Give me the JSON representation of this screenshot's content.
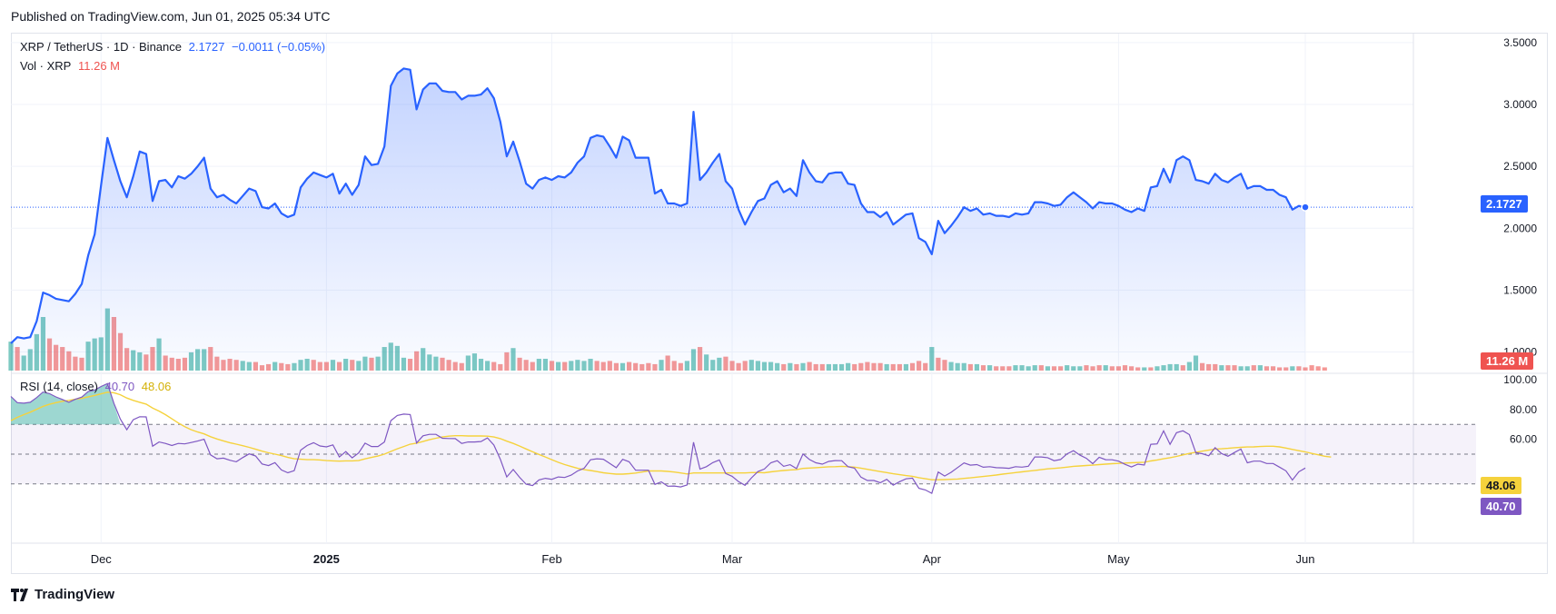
{
  "header": {
    "published": "Published on TradingView.com, Jun 01, 2025 05:34 UTC"
  },
  "legend": {
    "symbol": "XRP / TetherUS · 1D · Binance",
    "last": "2.1727",
    "change": "−0.0011 (−0.05%)",
    "vol_label": "Vol · XRP",
    "vol_value": "11.26 M",
    "rsi_label": "RSI (14, close)",
    "rsi_value": "40.70",
    "rsi_ma_value": "48.06"
  },
  "badges": {
    "price": "2.1727",
    "volume": "11.26 M",
    "rsi_ma": "48.06",
    "rsi": "40.70"
  },
  "footer": {
    "brand": "TradingView"
  },
  "colors": {
    "price_line": "#2962ff",
    "vol_up": "#26a69a",
    "vol_down": "#ef5350",
    "rsi": "#7e57c2",
    "rsi_ma": "#f5d23c",
    "rsi_band": "#7e57c2"
  },
  "chart_data": {
    "type": "line",
    "x_ticks": [
      "Dec",
      "2025",
      "Feb",
      "Mar",
      "Apr",
      "May",
      "Jun"
    ],
    "price_ticks": [
      "3.5000",
      "3.0000",
      "2.5000",
      "2.0000",
      "1.5000",
      "1.0000"
    ],
    "price_ylim": [
      0.85,
      3.55
    ],
    "rsi_ticks": [
      "100.00",
      "80.00",
      "60.00"
    ],
    "rsi_ylim": [
      0,
      100
    ],
    "rsi_bands": [
      70,
      50,
      30
    ],
    "price": [
      1.07,
      1.12,
      1.11,
      1.12,
      1.25,
      1.48,
      1.46,
      1.43,
      1.42,
      1.41,
      1.47,
      1.55,
      1.78,
      1.95,
      2.35,
      2.73,
      2.55,
      2.38,
      2.25,
      2.42,
      2.62,
      2.6,
      2.22,
      2.38,
      2.39,
      2.33,
      2.42,
      2.4,
      2.44,
      2.5,
      2.57,
      2.32,
      2.25,
      2.27,
      2.23,
      2.2,
      2.26,
      2.32,
      2.3,
      2.17,
      2.16,
      2.2,
      2.12,
      2.09,
      2.11,
      2.33,
      2.4,
      2.45,
      2.43,
      2.41,
      2.44,
      2.28,
      2.36,
      2.27,
      2.35,
      2.58,
      2.51,
      2.52,
      2.66,
      3.15,
      3.25,
      3.29,
      3.28,
      2.96,
      3.12,
      3.17,
      3.17,
      3.11,
      3.1,
      3.1,
      3.04,
      3.07,
      3.07,
      3.08,
      3.13,
      3.05,
      2.86,
      2.58,
      2.7,
      2.54,
      2.36,
      2.32,
      2.39,
      2.41,
      2.39,
      2.42,
      2.41,
      2.45,
      2.53,
      2.58,
      2.73,
      2.75,
      2.74,
      2.66,
      2.57,
      2.74,
      2.71,
      2.57,
      2.57,
      2.57,
      2.28,
      2.31,
      2.2,
      2.2,
      2.18,
      2.2,
      2.94,
      2.39,
      2.45,
      2.53,
      2.6,
      2.38,
      2.32,
      2.15,
      2.03,
      2.13,
      2.22,
      2.24,
      2.35,
      2.38,
      2.29,
      2.32,
      2.26,
      2.55,
      2.45,
      2.38,
      2.37,
      2.44,
      2.45,
      2.45,
      2.36,
      2.35,
      2.2,
      2.13,
      2.13,
      2.09,
      2.13,
      2.03,
      2.07,
      2.11,
      2.12,
      1.92,
      1.89,
      1.79,
      2.06,
      1.96,
      2.02,
      2.09,
      2.17,
      2.14,
      2.16,
      2.11,
      2.12,
      2.1,
      2.1,
      2.09,
      2.12,
      2.11,
      2.12,
      2.21,
      2.21,
      2.2,
      2.18,
      2.19,
      2.25,
      2.29,
      2.25,
      2.21,
      2.16,
      2.21,
      2.2,
      2.2,
      2.18,
      2.15,
      2.13,
      2.16,
      2.14,
      2.33,
      2.34,
      2.48,
      2.37,
      2.55,
      2.58,
      2.55,
      2.39,
      2.38,
      2.36,
      2.44,
      2.39,
      2.37,
      2.41,
      2.44,
      2.32,
      2.34,
      2.34,
      2.31,
      2.31,
      2.27,
      2.25,
      2.15,
      2.18,
      2.17
    ],
    "volume_dir": [
      1,
      0,
      1,
      1,
      1,
      1,
      0,
      0,
      0,
      0,
      0,
      0,
      1,
      1,
      1,
      1,
      0,
      0,
      0,
      1,
      1,
      0,
      0,
      1,
      0,
      0,
      0,
      0,
      1,
      1,
      1,
      0,
      0,
      0,
      0,
      0,
      1,
      1,
      0,
      0,
      0,
      1,
      0,
      0,
      1,
      1,
      1,
      0,
      0,
      0,
      1,
      0,
      1,
      0,
      1,
      1,
      0,
      1,
      1,
      1,
      1,
      1,
      0,
      0,
      1,
      1,
      1,
      0,
      0,
      0,
      0,
      1,
      1,
      1,
      1,
      0,
      0,
      0,
      1,
      0,
      0,
      0,
      1,
      1,
      0,
      1,
      0,
      1,
      1,
      1,
      1,
      0,
      0,
      0,
      0,
      1,
      0,
      0,
      0,
      0,
      0,
      1,
      0,
      0,
      0,
      1,
      1,
      0,
      1,
      1,
      1,
      0,
      0,
      0,
      0,
      1,
      1,
      1,
      1,
      1,
      0,
      1,
      0,
      1,
      0,
      0,
      0,
      1,
      1,
      1,
      1,
      0,
      0,
      0,
      0,
      0,
      1,
      0,
      0,
      1,
      0,
      0,
      0,
      1,
      0,
      0,
      1,
      1,
      1,
      0,
      1,
      0,
      1,
      0,
      0,
      0,
      1,
      1,
      1,
      1,
      0,
      1,
      0,
      0,
      1,
      1,
      1,
      0,
      0,
      0,
      1,
      0,
      0,
      0,
      0,
      0,
      1,
      0,
      1,
      1,
      1,
      1,
      0,
      1,
      1,
      0,
      0,
      0,
      1,
      0,
      0,
      1,
      1,
      0,
      1,
      0,
      0,
      0,
      0,
      1,
      0,
      0
    ],
    "volume_rel": [
      0.27,
      0.22,
      0.14,
      0.2,
      0.34,
      0.5,
      0.3,
      0.24,
      0.22,
      0.18,
      0.13,
      0.12,
      0.27,
      0.3,
      0.31,
      0.58,
      0.5,
      0.35,
      0.21,
      0.19,
      0.17,
      0.15,
      0.22,
      0.3,
      0.14,
      0.12,
      0.11,
      0.12,
      0.17,
      0.2,
      0.2,
      0.22,
      0.13,
      0.1,
      0.11,
      0.1,
      0.09,
      0.08,
      0.08,
      0.05,
      0.06,
      0.08,
      0.07,
      0.06,
      0.07,
      0.1,
      0.11,
      0.1,
      0.08,
      0.08,
      0.1,
      0.08,
      0.11,
      0.1,
      0.09,
      0.13,
      0.12,
      0.13,
      0.22,
      0.26,
      0.23,
      0.12,
      0.11,
      0.18,
      0.21,
      0.15,
      0.13,
      0.12,
      0.1,
      0.08,
      0.07,
      0.14,
      0.16,
      0.11,
      0.09,
      0.08,
      0.06,
      0.17,
      0.21,
      0.12,
      0.1,
      0.08,
      0.11,
      0.11,
      0.09,
      0.08,
      0.08,
      0.09,
      0.1,
      0.09,
      0.11,
      0.09,
      0.08,
      0.09,
      0.07,
      0.07,
      0.08,
      0.07,
      0.06,
      0.07,
      0.06,
      0.1,
      0.14,
      0.09,
      0.07,
      0.09,
      0.2,
      0.22,
      0.15,
      0.1,
      0.12,
      0.13,
      0.09,
      0.07,
      0.09,
      0.1,
      0.09,
      0.08,
      0.08,
      0.07,
      0.06,
      0.07,
      0.06,
      0.07,
      0.08,
      0.06,
      0.06,
      0.06,
      0.06,
      0.06,
      0.07,
      0.06,
      0.07,
      0.08,
      0.07,
      0.07,
      0.06,
      0.06,
      0.06,
      0.06,
      0.07,
      0.09,
      0.07,
      0.22,
      0.12,
      0.1,
      0.08,
      0.07,
      0.07,
      0.06,
      0.06,
      0.05,
      0.05,
      0.04,
      0.04,
      0.04,
      0.05,
      0.05,
      0.04,
      0.05,
      0.05,
      0.04,
      0.04,
      0.04,
      0.05,
      0.04,
      0.04,
      0.05,
      0.04,
      0.05,
      0.05,
      0.04,
      0.04,
      0.05,
      0.04,
      0.03,
      0.03,
      0.03,
      0.04,
      0.05,
      0.06,
      0.06,
      0.05,
      0.08,
      0.14,
      0.07,
      0.06,
      0.06,
      0.05,
      0.05,
      0.05,
      0.04,
      0.04,
      0.05,
      0.05,
      0.04,
      0.04,
      0.03,
      0.03,
      0.04,
      0.04,
      0.03,
      0.05,
      0.04,
      0.03
    ],
    "rsi": [
      88.7,
      84.6,
      84.2,
      84.8,
      88.0,
      91.7,
      90.6,
      88.4,
      86.7,
      84.8,
      86.8,
      88.3,
      92.0,
      93.0,
      95.4,
      97.4,
      84.1,
      73.5,
      66.4,
      73.1,
      75.1,
      75.0,
      55.3,
      58.2,
      57.2,
      55.8,
      57.2,
      56.9,
      57.8,
      58.8,
      60.0,
      49.5,
      46.9,
      47.3,
      45.9,
      44.9,
      47.7,
      50.2,
      48.8,
      43.4,
      42.3,
      44.3,
      39.4,
      37.5,
      38.9,
      52.7,
      55.8,
      57.7,
      55.5,
      54.9,
      56.2,
      48.1,
      51.7,
      47.5,
      50.8,
      57.4,
      55.1,
      55.1,
      58.2,
      72.5,
      76.0,
      76.9,
      76.6,
      57.5,
      62.3,
      63.3,
      63.3,
      60.7,
      60.5,
      60.4,
      57.2,
      58.2,
      58.2,
      58.5,
      60.9,
      56.1,
      46.6,
      34.7,
      39.7,
      34.4,
      29.8,
      28.9,
      32.7,
      33.8,
      33.1,
      34.7,
      34.3,
      35.9,
      38.7,
      40.5,
      46.2,
      46.9,
      46.6,
      43.8,
      40.9,
      46.5,
      44.9,
      39.2,
      39.2,
      39.2,
      29.7,
      31.4,
      28.5,
      28.6,
      28.0,
      29.3,
      58.0,
      40.0,
      41.6,
      44.3,
      46.1,
      37.0,
      35.1,
      31.5,
      29.1,
      34.1,
      38.3,
      40.0,
      44.2,
      45.6,
      41.8,
      42.9,
      40.3,
      50.1,
      46.4,
      44.2,
      43.3,
      45.1,
      45.7,
      45.6,
      41.6,
      40.6,
      34.6,
      32.3,
      32.3,
      30.8,
      33.1,
      29.2,
      31.5,
      33.4,
      33.9,
      27.1,
      26.0,
      23.7,
      38.0,
      35.3,
      37.8,
      41.0,
      44.1,
      42.6,
      43.0,
      41.2,
      41.6,
      40.9,
      40.8,
      40.5,
      41.6,
      41.3,
      41.9,
      48.1,
      48.1,
      47.6,
      45.6,
      46.4,
      50.2,
      52.3,
      49.3,
      47.2,
      43.6,
      47.9,
      46.3,
      46.2,
      45.3,
      43.2,
      41.4,
      43.3,
      42.7,
      56.6,
      56.9,
      65.6,
      56.6,
      64.4,
      65.7,
      63.1,
      51.0,
      50.3,
      48.9,
      54.3,
      50.4,
      48.6,
      51.1,
      53.4,
      44.2,
      45.3,
      45.3,
      43.7,
      43.7,
      41.3,
      38.8,
      32.6,
      38.2,
      40.7
    ],
    "rsi_ma": [
      72.5,
      74.7,
      76.5,
      78.2,
      80.1,
      82.1,
      83.5,
      84.6,
      85.5,
      86.1,
      86.8,
      87.5,
      88.5,
      89.4,
      90.5,
      91.6,
      91.2,
      89.9,
      87.7,
      86.1,
      84.8,
      83.6,
      81.0,
      78.9,
      76.5,
      73.7,
      70.9,
      68.5,
      66.4,
      64.9,
      63.6,
      61.7,
      60.2,
      58.9,
      57.7,
      56.7,
      55.7,
      54.6,
      53.3,
      52.0,
      50.9,
      50.0,
      49.0,
      47.8,
      46.9,
      46.6,
      46.3,
      46.3,
      46.1,
      45.7,
      45.5,
      45.3,
      45.5,
      45.5,
      45.7,
      46.8,
      47.8,
      48.7,
      50.0,
      51.8,
      53.6,
      55.1,
      56.7,
      57.4,
      58.5,
      59.7,
      60.7,
      61.5,
      62.1,
      62.4,
      62.4,
      62.2,
      62.2,
      62.2,
      62.1,
      61.5,
      60.4,
      58.7,
      57.2,
      55.4,
      53.5,
      51.6,
      49.8,
      48.1,
      46.3,
      44.5,
      43.0,
      41.7,
      40.5,
      39.6,
      39.0,
      38.3,
      37.5,
      37.0,
      36.6,
      36.6,
      36.9,
      37.3,
      38.0,
      38.7,
      38.8,
      38.7,
      38.4,
      38.0,
      37.4,
      36.7,
      37.4,
      37.4,
      37.4,
      37.4,
      37.4,
      37.4,
      37.4,
      37.4,
      37.4,
      37.6,
      37.7,
      37.5,
      38.1,
      38.6,
      39.0,
      39.4,
      39.6,
      40.4,
      40.7,
      40.9,
      41.2,
      41.5,
      41.6,
      41.8,
      41.6,
      41.3,
      40.6,
      39.8,
      39.1,
      38.3,
      37.6,
      36.8,
      36.2,
      35.6,
      35.1,
      34.2,
      33.5,
      32.8,
      32.8,
      32.9,
      33.1,
      33.3,
      33.7,
      34.1,
      34.6,
      35.0,
      35.5,
      36.0,
      36.6,
      37.1,
      37.6,
      38.1,
      38.6,
      39.1,
      39.6,
      40.1,
      40.4,
      40.8,
      41.3,
      41.8,
      42.1,
      42.4,
      42.6,
      43.0,
      43.3,
      43.6,
      43.8,
      44.0,
      44.2,
      44.4,
      44.6,
      45.4,
      46.1,
      46.9,
      47.6,
      48.5,
      49.5,
      50.5,
      51.3,
      52.0,
      52.7,
      53.4,
      53.6,
      53.9,
      54.3,
      54.6,
      54.8,
      54.9,
      55.1,
      55.3,
      55.3,
      54.9,
      54.1,
      53.2,
      52.3,
      51.5,
      50.5,
      49.6,
      48.6,
      48.06
    ]
  }
}
